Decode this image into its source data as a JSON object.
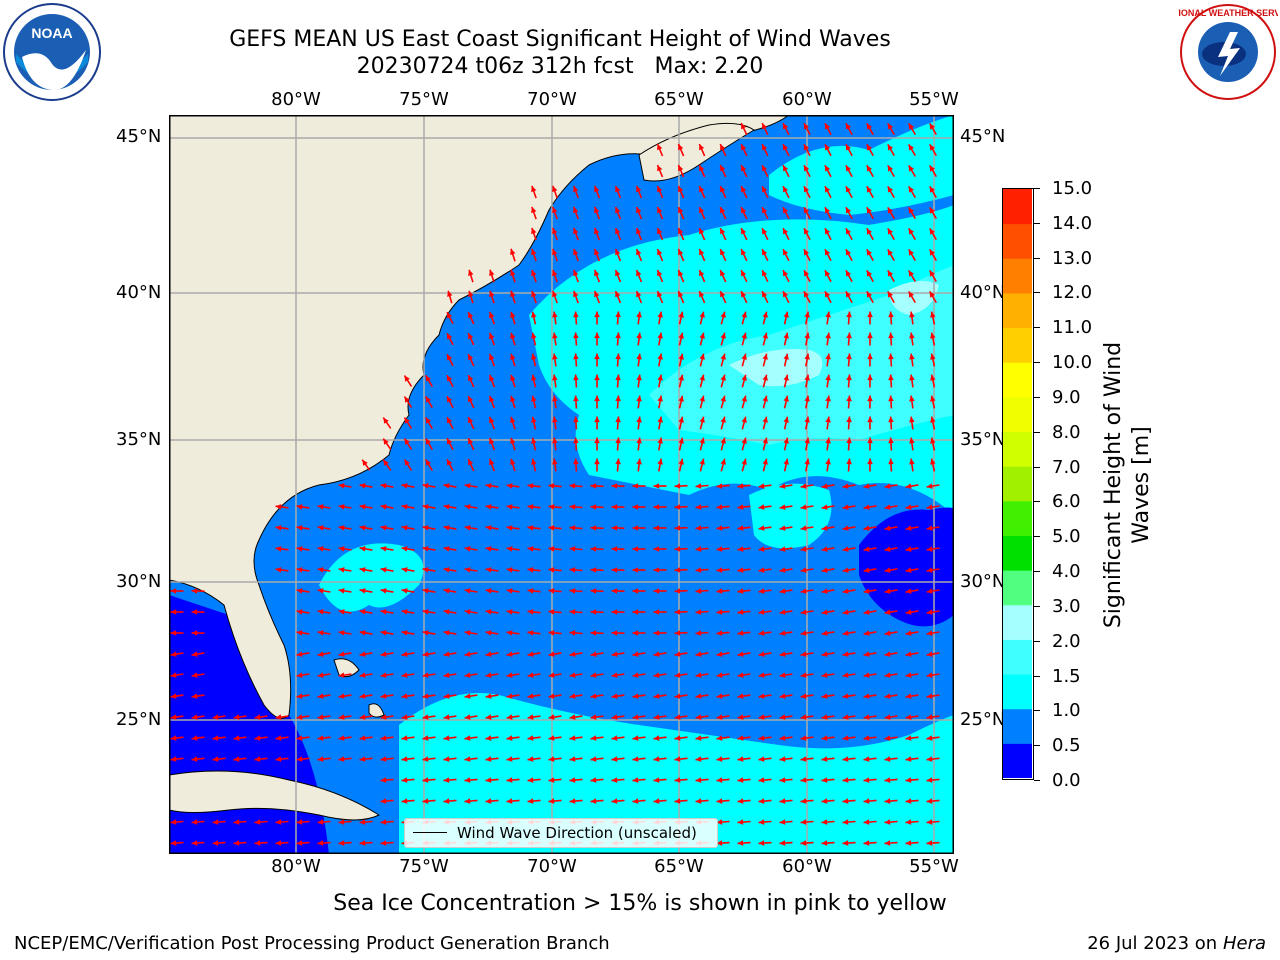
{
  "title": {
    "line1": "GEFS MEAN US East Coast Significant Height of Wind Waves",
    "line2": "20230724 t06z 312h fcst   Max: 2.20"
  },
  "logos": {
    "left": {
      "text": "NOAA",
      "name": "noaa-logo"
    },
    "right": {
      "text": "NATIONAL WEATHER SERVICE",
      "name": "nws-logo"
    }
  },
  "map": {
    "lon_ticks": [
      "80°W",
      "75°W",
      "70°W",
      "65°W",
      "60°W",
      "55°W"
    ],
    "lat_ticks": [
      "45°N",
      "40°N",
      "35°N",
      "30°N",
      "25°N"
    ],
    "legend_label": "Wind Wave Direction (unscaled)",
    "arrow_color": "#ff0000",
    "land_color": "#efecdc"
  },
  "colorbar": {
    "title_line1": "Significant Height of Wind",
    "title_line2": "Waves [m]",
    "ticks": [
      "15.0",
      "14.0",
      "13.0",
      "12.0",
      "11.0",
      "10.0",
      "9.0",
      "8.0",
      "7.0",
      "6.0",
      "5.0",
      "4.0",
      "3.0",
      "2.0",
      "1.5",
      "1.0",
      "0.5",
      "0.0"
    ],
    "colors_bottom_to_top": [
      "#0000ff",
      "#0080ff",
      "#00ffff",
      "#40ffff",
      "#a6ffff",
      "#50ff80",
      "#00e000",
      "#40f000",
      "#a0f000",
      "#d0ff00",
      "#f0ff00",
      "#ffff00",
      "#ffd000",
      "#ffb000",
      "#ff8000",
      "#ff5000",
      "#ff2000"
    ]
  },
  "note": "Sea Ice Concentration > 15% is shown in pink to yellow",
  "footer": {
    "left": "NCEP/EMC/Verification Post Processing Product Generation Branch",
    "right_date": "26 Jul 2023 on ",
    "right_host": "Hera"
  }
}
